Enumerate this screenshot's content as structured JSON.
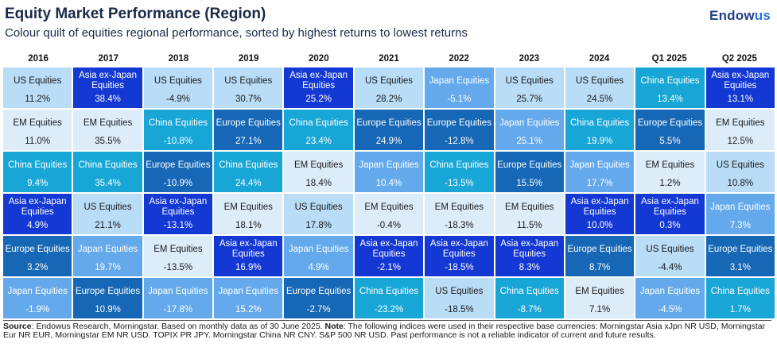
{
  "header": {
    "title": "Equity Market Performance (Region)",
    "subtitle": "Colour quilt of equities regional performance, sorted by highest returns to lowest returns",
    "brand_main": "Endow",
    "brand_accent": "us"
  },
  "colors": {
    "US Equities": "#b9dcf7",
    "EM Equities": "#dcecf9",
    "Japan Equities": "#63a9ec",
    "China Equities": "#17a6d6",
    "Europe Equities": "#1667b6",
    "Asia ex-Japan Equities": "#1438d4"
  },
  "chart_data": {
    "type": "table",
    "title": "Equity Market Performance (Region)",
    "periods": [
      "2016",
      "2017",
      "2018",
      "2019",
      "2020",
      "2021",
      "2022",
      "2023",
      "2024",
      "Q1 2025",
      "Q2 2025"
    ],
    "rows": [
      [
        {
          "region": "US Equities",
          "return": "11.2%"
        },
        {
          "region": "Asia ex-Japan Equities",
          "return": "38.4%"
        },
        {
          "region": "US Equities",
          "return": "-4.9%"
        },
        {
          "region": "US Equities",
          "return": "30.7%"
        },
        {
          "region": "Asia ex-Japan Equities",
          "return": "25.2%"
        },
        {
          "region": "US Equities",
          "return": "28.2%"
        },
        {
          "region": "Japan Equities",
          "return": "-5.1%"
        },
        {
          "region": "US Equities",
          "return": "25.7%"
        },
        {
          "region": "US Equities",
          "return": "24.5%"
        },
        {
          "region": "China Equities",
          "return": "13.4%"
        },
        {
          "region": "Asia ex-Japan Equities",
          "return": "13.1%"
        }
      ],
      [
        {
          "region": "EM Equities",
          "return": "11.0%"
        },
        {
          "region": "EM Equities",
          "return": "35.5%"
        },
        {
          "region": "China Equities",
          "return": "-10.8%"
        },
        {
          "region": "Europe Equities",
          "return": "27.1%"
        },
        {
          "region": "China Equities",
          "return": "23.4%"
        },
        {
          "region": "Europe Equities",
          "return": "24.9%"
        },
        {
          "region": "Europe Equities",
          "return": "-12.8%"
        },
        {
          "region": "Japan Equities",
          "return": "25.1%"
        },
        {
          "region": "China Equities",
          "return": "19.9%"
        },
        {
          "region": "Europe Equities",
          "return": "5.5%"
        },
        {
          "region": "EM Equities",
          "return": "12.5%"
        }
      ],
      [
        {
          "region": "China Equities",
          "return": "9.4%"
        },
        {
          "region": "China Equities",
          "return": "35.4%"
        },
        {
          "region": "Europe Equities",
          "return": "-10.9%"
        },
        {
          "region": "China Equities",
          "return": "24.4%"
        },
        {
          "region": "EM Equities",
          "return": "18.4%"
        },
        {
          "region": "Japan Equities",
          "return": "10.4%"
        },
        {
          "region": "China Equities",
          "return": "-13.5%"
        },
        {
          "region": "Europe Equities",
          "return": "15.5%"
        },
        {
          "region": "Japan Equities",
          "return": "17.7%"
        },
        {
          "region": "EM Equities",
          "return": "1.2%"
        },
        {
          "region": "US Equities",
          "return": "10.8%"
        }
      ],
      [
        {
          "region": "Asia ex-Japan Equities",
          "return": "4.9%"
        },
        {
          "region": "US Equities",
          "return": "21.1%"
        },
        {
          "region": "Asia ex-Japan Equities",
          "return": "-13.1%"
        },
        {
          "region": "EM Equities",
          "return": "18.1%"
        },
        {
          "region": "US Equities",
          "return": "17.8%"
        },
        {
          "region": "EM Equities",
          "return": "-0.4%"
        },
        {
          "region": "EM Equities",
          "return": "-18.3%"
        },
        {
          "region": "EM Equities",
          "return": "11.5%"
        },
        {
          "region": "Asia ex-Japan Equities",
          "return": "10.0%"
        },
        {
          "region": "Asia ex-Japan Equities",
          "return": "0.3%"
        },
        {
          "region": "Japan Equities",
          "return": "7.3%"
        }
      ],
      [
        {
          "region": "Europe Equities",
          "return": "3.2%"
        },
        {
          "region": "Japan Equities",
          "return": "19.7%"
        },
        {
          "region": "EM Equities",
          "return": "-13.5%"
        },
        {
          "region": "Asia ex-Japan Equities",
          "return": "16.9%"
        },
        {
          "region": "Japan Equities",
          "return": "4.9%"
        },
        {
          "region": "Asia ex-Japan Equities",
          "return": "-2.1%"
        },
        {
          "region": "Asia ex-Japan Equities",
          "return": "-18.5%"
        },
        {
          "region": "Asia ex-Japan Equities",
          "return": "8.3%"
        },
        {
          "region": "Europe Equities",
          "return": "8.7%"
        },
        {
          "region": "US Equities",
          "return": "-4.4%"
        },
        {
          "region": "Europe Equities",
          "return": "3.1%"
        }
      ],
      [
        {
          "region": "Japan Equities",
          "return": "-1.9%"
        },
        {
          "region": "Europe Equities",
          "return": "10.9%"
        },
        {
          "region": "Japan Equities",
          "return": "-17.8%"
        },
        {
          "region": "Japan Equities",
          "return": "15.2%"
        },
        {
          "region": "Europe Equities",
          "return": "-2.7%"
        },
        {
          "region": "China Equities",
          "return": "-23.2%"
        },
        {
          "region": "US Equities",
          "return": "-18.5%"
        },
        {
          "region": "China Equities",
          "return": "-8.7%"
        },
        {
          "region": "EM Equities",
          "return": "7.1%"
        },
        {
          "region": "Japan Equities",
          "return": "-4.5%"
        },
        {
          "region": "China Equities",
          "return": "1.7%"
        }
      ]
    ]
  },
  "footer": {
    "source_label": "Source",
    "source_text": ": Endowus Research, Morningstar. Based on monthly data as of 30 June 2025. ",
    "note_label": "Note",
    "note_text": ": The following indices were used in their respective base currencies: Morningstar Asia xJpn NR USD, Morningstar Eur NR EUR, Morningstar EM NR USD. TOPIX PR JPY. Morningstar China NR CNY. S&P 500 NR USD. Past performance is not a reliable indicator of current and future results."
  }
}
